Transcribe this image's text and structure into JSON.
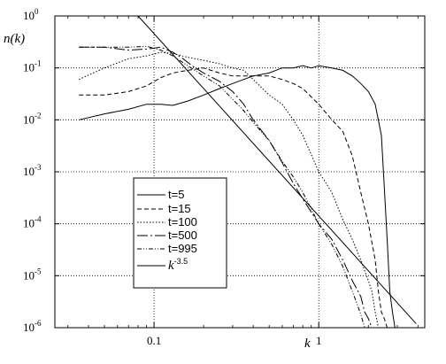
{
  "chart_data": {
    "type": "line",
    "title": "",
    "xlabel": "k",
    "ylabel": "n(k)",
    "x_scale": "log",
    "y_scale": "log",
    "xlim": [
      0.025,
      4.4
    ],
    "ylim": [
      1e-06,
      1
    ],
    "grid": true,
    "legend_position": "lower-left-center",
    "x_ticks": [
      {
        "value": 0.1,
        "label": "0.1"
      },
      {
        "value": 1,
        "label": "1"
      }
    ],
    "y_ticks": [
      {
        "value": 1,
        "base": "10",
        "exp": "0"
      },
      {
        "value": 0.1,
        "base": "10",
        "exp": "-1"
      },
      {
        "value": 0.01,
        "base": "10",
        "exp": "-2"
      },
      {
        "value": 0.001,
        "base": "10",
        "exp": "-3"
      },
      {
        "value": 0.0001,
        "base": "10",
        "exp": "-4"
      },
      {
        "value": 1e-05,
        "base": "10",
        "exp": "-5"
      },
      {
        "value": 1e-06,
        "base": "10",
        "exp": "-6"
      }
    ],
    "series": [
      {
        "name": "t=5",
        "dash": "",
        "color": "#000000",
        "x": [
          0.035,
          0.05,
          0.07,
          0.09,
          0.11,
          0.13,
          0.16,
          0.2,
          0.25,
          0.3,
          0.35,
          0.4,
          0.5,
          0.6,
          0.7,
          0.8,
          0.9,
          1.0,
          1.2,
          1.4,
          1.6,
          1.8,
          2.0,
          2.2,
          2.4,
          2.5,
          2.6,
          2.7,
          2.8,
          2.9
        ],
        "y": [
          0.01,
          0.013,
          0.016,
          0.02,
          0.02,
          0.019,
          0.023,
          0.03,
          0.04,
          0.05,
          0.06,
          0.07,
          0.08,
          0.1,
          0.1,
          0.11,
          0.1,
          0.11,
          0.1,
          0.09,
          0.07,
          0.05,
          0.035,
          0.02,
          0.005,
          0.0005,
          5e-05,
          5e-06,
          2e-06,
          1e-06
        ]
      },
      {
        "name": "t=15",
        "dash": "5,3",
        "color": "#000000",
        "x": [
          0.035,
          0.05,
          0.07,
          0.09,
          0.11,
          0.13,
          0.16,
          0.2,
          0.25,
          0.3,
          0.4,
          0.5,
          0.6,
          0.7,
          0.8,
          1.0,
          1.2,
          1.4,
          1.6,
          1.8,
          2.0,
          2.2,
          2.3,
          2.4,
          2.5,
          2.6
        ],
        "y": [
          0.03,
          0.03,
          0.035,
          0.045,
          0.065,
          0.08,
          0.09,
          0.1,
          0.08,
          0.07,
          0.07,
          0.07,
          0.06,
          0.05,
          0.04,
          0.02,
          0.01,
          0.006,
          0.002,
          0.0004,
          0.0001,
          2e-05,
          5e-06,
          2e-06,
          1.5e-06,
          1e-06
        ]
      },
      {
        "name": "t=100",
        "dash": "1.5,2",
        "color": "#000000",
        "x": [
          0.035,
          0.05,
          0.07,
          0.09,
          0.11,
          0.13,
          0.16,
          0.2,
          0.25,
          0.3,
          0.35,
          0.4,
          0.5,
          0.6,
          0.7,
          0.8,
          1.0,
          1.2,
          1.4,
          1.6,
          1.8,
          2.0,
          2.1,
          2.2,
          2.3
        ],
        "y": [
          0.06,
          0.1,
          0.15,
          0.17,
          0.2,
          0.19,
          0.16,
          0.14,
          0.12,
          0.1,
          0.09,
          0.06,
          0.03,
          0.02,
          0.01,
          0.005,
          0.001,
          0.0004,
          0.00012,
          5e-05,
          2e-05,
          8e-06,
          5e-06,
          2e-06,
          1e-06
        ]
      },
      {
        "name": "t=500",
        "dash": "12,3,2,3",
        "color": "#000000",
        "x": [
          0.035,
          0.05,
          0.07,
          0.09,
          0.11,
          0.13,
          0.15,
          0.17,
          0.2,
          0.25,
          0.3,
          0.35,
          0.4,
          0.5,
          0.6,
          0.7,
          0.8,
          1.0,
          1.2,
          1.4,
          1.6,
          1.8,
          1.9,
          2.0,
          2.1
        ],
        "y": [
          0.25,
          0.25,
          0.22,
          0.23,
          0.25,
          0.2,
          0.15,
          0.11,
          0.08,
          0.055,
          0.035,
          0.02,
          0.01,
          0.004,
          0.0015,
          0.0006,
          0.0003,
          0.0001,
          5e-05,
          2e-05,
          8e-06,
          4e-06,
          2e-06,
          1.5e-06,
          1e-06
        ]
      },
      {
        "name": "t=995",
        "dash": "5,2,1,2,1,2",
        "color": "#000000",
        "x": [
          0.035,
          0.05,
          0.07,
          0.09,
          0.11,
          0.13,
          0.16,
          0.2,
          0.25,
          0.3,
          0.35,
          0.4,
          0.5,
          0.6,
          0.7,
          0.8,
          1.0,
          1.2,
          1.4,
          1.6,
          1.7,
          1.8,
          1.9
        ],
        "y": [
          0.25,
          0.25,
          0.25,
          0.26,
          0.22,
          0.17,
          0.11,
          0.07,
          0.045,
          0.025,
          0.015,
          0.009,
          0.004,
          0.0016,
          0.0008,
          0.0004,
          0.0001,
          4e-05,
          1.5e-05,
          5e-06,
          3e-06,
          1.8e-06,
          1e-06
        ]
      },
      {
        "name": "k^-3.5",
        "label_base": "k",
        "label_exp": "-3.5",
        "dash": "",
        "color": "#000000",
        "x": [
          0.08,
          3.9
        ],
        "y": [
          1.0,
          1.2e-06
        ]
      }
    ]
  }
}
